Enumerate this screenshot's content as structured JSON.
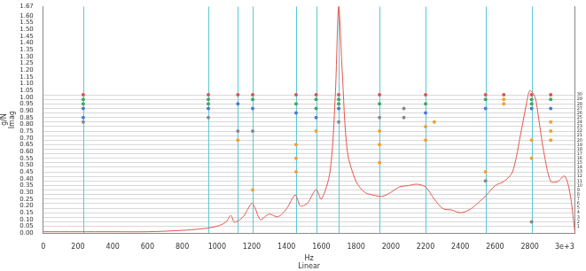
{
  "chart_data": {
    "type": "line",
    "x_label": [
      "Hz",
      "Linear"
    ],
    "y_label": [
      "g/N",
      "Imag"
    ],
    "xlim": [
      0,
      3060
    ],
    "xticks": [
      0,
      200,
      400,
      600,
      800,
      1000,
      1200,
      1400,
      1600,
      1800,
      2000,
      2200,
      2400,
      2600,
      2800,
      {
        "value": 3000,
        "label": "3e+3"
      }
    ],
    "ylim": [
      0,
      1.67
    ],
    "yticks": [
      {
        "value": 0,
        "label": "0.00"
      },
      {
        "value": 0.05,
        "label": "0.05"
      },
      {
        "value": 0.1,
        "label": "0.10"
      },
      {
        "value": 0.15,
        "label": "0.15"
      },
      {
        "value": 0.2,
        "label": "0.20"
      },
      {
        "value": 0.25,
        "label": "0.25"
      },
      {
        "value": 0.3,
        "label": "0.30"
      },
      {
        "value": 0.35,
        "label": "0.35"
      },
      {
        "value": 0.4,
        "label": "0.40"
      },
      {
        "value": 0.45,
        "label": "0.45"
      },
      {
        "value": 0.5,
        "label": "0.50"
      },
      {
        "value": 0.55,
        "label": "0.55"
      },
      {
        "value": 0.6,
        "label": "0.60"
      },
      {
        "value": 0.65,
        "label": "0.65"
      },
      {
        "value": 0.7,
        "label": "0.70"
      },
      {
        "value": 0.75,
        "label": "0.75"
      },
      {
        "value": 0.8,
        "label": "0.80"
      },
      {
        "value": 0.85,
        "label": "0.85"
      },
      {
        "value": 0.9,
        "label": "0.90"
      },
      {
        "value": 0.95,
        "label": "0.95"
      },
      {
        "value": 1,
        "label": "1.00"
      },
      {
        "value": 1.05,
        "label": "1.05"
      },
      {
        "value": 1.1,
        "label": "1.10"
      },
      {
        "value": 1.15,
        "label": "1.15"
      },
      {
        "value": 1.2,
        "label": "1.20"
      },
      {
        "value": 1.25,
        "label": "1.25"
      },
      {
        "value": 1.3,
        "label": "1.30"
      },
      {
        "value": 1.35,
        "label": "1.35"
      },
      {
        "value": 1.4,
        "label": "1.40"
      },
      {
        "value": 1.45,
        "label": "1.45"
      },
      {
        "value": 1.5,
        "label": "1.50"
      },
      {
        "value": 1.55,
        "label": "1.55"
      },
      {
        "value": 1.6,
        "label": "1.60"
      },
      1.67
    ],
    "y2lim": [
      -0.5,
      49.5
    ],
    "y2ticks": [
      1,
      2,
      3,
      4,
      5,
      6,
      7,
      8,
      9,
      10,
      11,
      12,
      13,
      14,
      15,
      16,
      17,
      18,
      19,
      20,
      21,
      22,
      23,
      24,
      25,
      26,
      27,
      28,
      29,
      30
    ],
    "grid": true,
    "mode_lines": [
      230,
      950,
      1120,
      1205,
      1455,
      1570,
      1700,
      1935,
      2200,
      2545,
      2810
    ],
    "mode_line_color": "#5cc8d6",
    "series": [
      {
        "type": "line",
        "color": "#e8554e",
        "x": [
          0,
          200,
          400,
          600,
          800,
          900,
          960,
          1000,
          1050,
          1080,
          1100,
          1150,
          1200,
          1220,
          1250,
          1300,
          1350,
          1400,
          1450,
          1480,
          1520,
          1570,
          1600,
          1650,
          1680,
          1700,
          1720,
          1750,
          1800,
          1850,
          1900,
          1950,
          2000,
          2050,
          2100,
          2150,
          2200,
          2250,
          2300,
          2350,
          2400,
          2450,
          2500,
          2550,
          2600,
          2650,
          2700,
          2750,
          2780,
          2800,
          2830,
          2850,
          2880,
          2920,
          2960,
          3000,
          3030,
          3060
        ],
        "values": [
          0.01,
          0.01,
          0.01,
          0.01,
          0.02,
          0.03,
          0.04,
          0.05,
          0.08,
          0.13,
          0.08,
          0.12,
          0.22,
          0.18,
          0.1,
          0.14,
          0.12,
          0.18,
          0.28,
          0.2,
          0.22,
          0.32,
          0.25,
          0.45,
          1.0,
          1.67,
          1.2,
          0.6,
          0.38,
          0.3,
          0.28,
          0.27,
          0.3,
          0.34,
          0.35,
          0.36,
          0.34,
          0.25,
          0.18,
          0.17,
          0.15,
          0.17,
          0.22,
          0.28,
          0.35,
          0.38,
          0.45,
          0.75,
          0.95,
          1.05,
          1.0,
          0.85,
          0.6,
          0.38,
          0.38,
          0.42,
          0.3,
          0.0
        ]
      },
      {
        "type": "scatter",
        "axis": "y2",
        "color": "#e05050",
        "x": [
          230,
          950,
          1120,
          1205,
          1455,
          1570,
          1700,
          1935,
          2200,
          2545,
          2650,
          2810,
          2920
        ],
        "values": [
          30,
          30,
          30,
          30,
          30,
          30,
          30,
          30,
          30,
          30,
          30,
          30,
          30
        ]
      },
      {
        "type": "scatter",
        "axis": "y2",
        "color": "#40a860",
        "x": [
          230,
          230,
          950,
          950,
          1205,
          1455,
          1570,
          1570,
          1700,
          1700,
          1935,
          2200,
          2545,
          2810,
          2810,
          2920
        ],
        "values": [
          29,
          28,
          29,
          28,
          29,
          28,
          29,
          27,
          29,
          28,
          28,
          28,
          29,
          29,
          28,
          29
        ]
      },
      {
        "type": "scatter",
        "axis": "y2",
        "color": "#4a7bd0",
        "x": [
          230,
          230,
          950,
          1120,
          1205,
          1455,
          1570,
          1700,
          2200,
          2545,
          2810,
          2920
        ],
        "values": [
          27,
          25,
          27,
          28,
          27,
          26,
          25,
          27,
          26,
          27,
          27,
          27
        ]
      },
      {
        "type": "scatter",
        "axis": "y2",
        "color": "#f0a030",
        "x": [
          1120,
          1205,
          1455,
          1455,
          1455,
          1570,
          1935,
          1935,
          1935,
          2200,
          2200,
          2250,
          2545,
          2650,
          2650,
          2810,
          2810,
          2920,
          2920,
          2920
        ],
        "values": [
          20,
          9,
          19,
          16,
          13,
          22,
          22,
          19,
          15,
          23,
          20,
          24,
          13,
          29,
          28,
          20,
          16,
          24,
          22,
          20
        ]
      },
      {
        "type": "scatter",
        "axis": "y2",
        "color": "#888888",
        "x": [
          230,
          950,
          1120,
          1205,
          1700,
          1935,
          2075,
          2075,
          2545,
          2810
        ],
        "values": [
          24,
          25,
          22,
          22,
          24,
          25,
          27,
          25,
          11,
          2
        ]
      }
    ]
  }
}
